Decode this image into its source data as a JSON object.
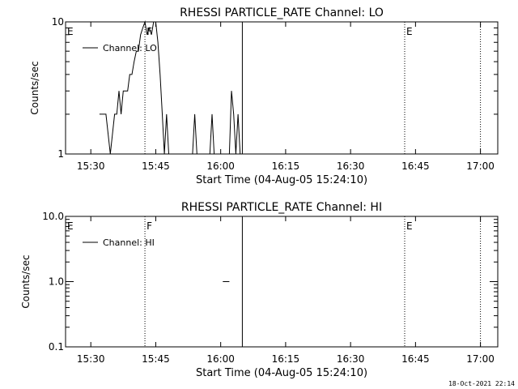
{
  "footer_timestamp": "18-Oct-2021 22:14",
  "chart_data": [
    {
      "type": "line",
      "title": "RHESSI PARTICLE_RATE Channel: LO",
      "xlabel": "Start Time (04-Aug-05 15:24:10)",
      "ylabel": "Counts/sec",
      "yscale": "log",
      "ylim": [
        1,
        10
      ],
      "xlim": [
        "15:24:10",
        "17:04:00"
      ],
      "x_ticks": [
        "15:30",
        "15:45",
        "16:00",
        "16:15",
        "16:30",
        "16:45",
        "17:00"
      ],
      "y_ticks": [
        "1",
        "10"
      ],
      "legend": {
        "label": "Channel: LO",
        "placement": "top-left"
      },
      "markers": [
        {
          "time": "15:42:30",
          "style": "dotted",
          "label": "F"
        },
        {
          "time": "16:05:00",
          "style": "solid",
          "label": ""
        },
        {
          "time": "16:42:30",
          "style": "dotted",
          "label": "E"
        },
        {
          "time": "17:00:00",
          "style": "dotted",
          "label": ""
        }
      ],
      "corner_labels": [
        "E"
      ],
      "series": [
        {
          "name": "Channel: LO",
          "x": [
            "15:32:00",
            "15:33:30",
            "15:34:30",
            "15:35:30",
            "15:36:00",
            "15:36:30",
            "15:37:00",
            "15:37:30",
            "15:38:00",
            "15:38:30",
            "15:39:00",
            "15:39:30",
            "15:40:00",
            "15:40:30",
            "15:41:00",
            "15:41:30",
            "15:42:00",
            "15:42:30",
            "15:43:00",
            "15:43:30",
            "15:44:00",
            "15:44:30",
            "15:45:00",
            "15:45:30",
            "15:46:00",
            "15:46:30",
            "15:47:00",
            "15:47:30",
            "15:48:00",
            "15:53:30",
            "15:54:00",
            "15:54:30",
            "15:57:30",
            "15:58:00",
            "15:58:30",
            "16:02:00",
            "16:02:30",
            "16:03:00",
            "16:03:30",
            "16:04:00",
            "16:04:30"
          ],
          "values": [
            2,
            2,
            1,
            2,
            2,
            3,
            2,
            3,
            3,
            3,
            4,
            4,
            5,
            6,
            6,
            8,
            9,
            10,
            8,
            9,
            8,
            10,
            10,
            7,
            4,
            2,
            1,
            2,
            1,
            1,
            2,
            1,
            1,
            2,
            1,
            1,
            3,
            2,
            1,
            2,
            1
          ]
        }
      ]
    },
    {
      "type": "line",
      "title": "RHESSI PARTICLE_RATE Channel: HI",
      "xlabel": "Start Time (04-Aug-05 15:24:10)",
      "ylabel": "Counts/sec",
      "yscale": "log",
      "ylim": [
        0.1,
        10
      ],
      "xlim": [
        "15:24:10",
        "17:04:00"
      ],
      "x_ticks": [
        "15:30",
        "15:45",
        "16:00",
        "16:15",
        "16:30",
        "16:45",
        "17:00"
      ],
      "y_ticks": [
        "0.1",
        "1.0",
        "10.0"
      ],
      "legend": {
        "label": "Channel: HI",
        "placement": "top-left"
      },
      "markers": [
        {
          "time": "15:42:30",
          "style": "dotted",
          "label": "F"
        },
        {
          "time": "16:05:00",
          "style": "solid",
          "label": ""
        },
        {
          "time": "16:42:30",
          "style": "dotted",
          "label": "E"
        },
        {
          "time": "17:00:00",
          "style": "dotted",
          "label": ""
        }
      ],
      "corner_labels": [
        "E"
      ],
      "series": [
        {
          "name": "Channel: HI",
          "segments": [
            {
              "x": [
                "16:00:30",
                "16:02:00"
              ],
              "values": [
                1,
                1
              ]
            }
          ]
        }
      ]
    }
  ]
}
